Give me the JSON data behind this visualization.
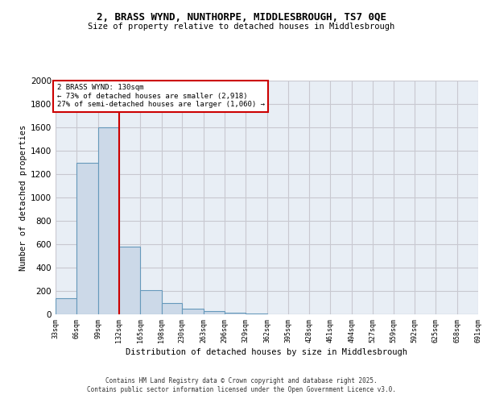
{
  "title1": "2, BRASS WYND, NUNTHORPE, MIDDLESBROUGH, TS7 0QE",
  "title2": "Size of property relative to detached houses in Middlesbrough",
  "xlabel": "Distribution of detached houses by size in Middlesbrough",
  "ylabel": "Number of detached properties",
  "bar_values": [
    140,
    1300,
    1600,
    580,
    210,
    100,
    50,
    25,
    15,
    5,
    3,
    2,
    1,
    1,
    1,
    1,
    1,
    1,
    1,
    1
  ],
  "bin_edges": [
    33,
    66,
    99,
    132,
    165,
    198,
    230,
    263,
    296,
    329,
    362,
    395,
    428,
    461,
    494,
    527,
    559,
    592,
    625,
    658,
    691
  ],
  "tick_labels": [
    "33sqm",
    "66sqm",
    "99sqm",
    "132sqm",
    "165sqm",
    "198sqm",
    "230sqm",
    "263sqm",
    "296sqm",
    "329sqm",
    "362sqm",
    "395sqm",
    "428sqm",
    "461sqm",
    "494sqm",
    "527sqm",
    "559sqm",
    "592sqm",
    "625sqm",
    "658sqm",
    "691sqm"
  ],
  "bar_color": "#ccd9e8",
  "bar_edge_color": "#6699bb",
  "vline_x": 132,
  "vline_color": "#cc0000",
  "annotation_line1": "2 BRASS WYND: 130sqm",
  "annotation_line2": "← 73% of detached houses are smaller (2,918)",
  "annotation_line3": "27% of semi-detached houses are larger (1,060) →",
  "annotation_box_color": "#cc0000",
  "annotation_bg": "#ffffff",
  "ylim": [
    0,
    2000
  ],
  "yticks": [
    0,
    200,
    400,
    600,
    800,
    1000,
    1200,
    1400,
    1600,
    1800,
    2000
  ],
  "grid_color": "#c8c8d0",
  "bg_color": "#e8eef5",
  "footer1": "Contains HM Land Registry data © Crown copyright and database right 2025.",
  "footer2": "Contains public sector information licensed under the Open Government Licence v3.0."
}
